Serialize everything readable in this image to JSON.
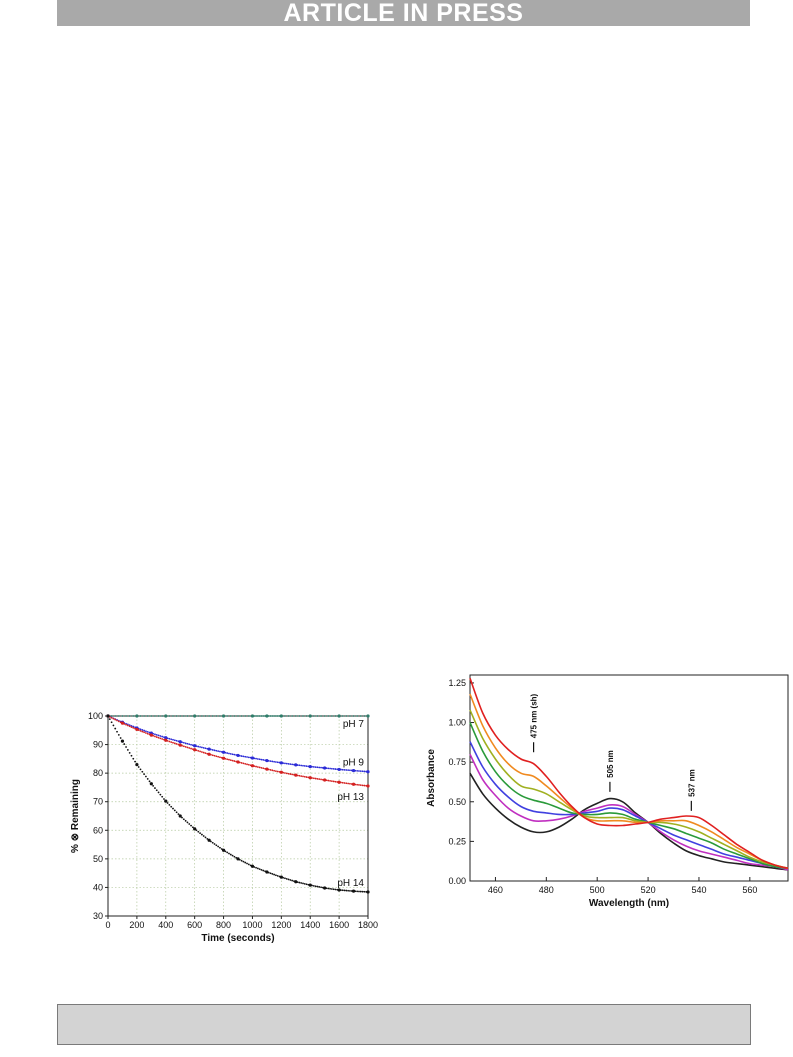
{
  "header": {
    "banner_text": "ARTICLE IN PRESS",
    "banner_color": "#a9a9a9"
  },
  "footer": {
    "box_color": "#d3d3d3"
  },
  "chart_data": [
    {
      "type": "scatter",
      "title": "",
      "xlabel": "Time (seconds)",
      "ylabel": "% ⊗ Remaining",
      "xlim": [
        0,
        1800
      ],
      "ylim": [
        30,
        100
      ],
      "xticks": [
        0,
        200,
        400,
        600,
        800,
        1000,
        1200,
        1400,
        1600,
        1800
      ],
      "yticks": [
        30,
        40,
        50,
        60,
        70,
        80,
        90,
        100
      ],
      "grid": true,
      "series": [
        {
          "name": "pH 7",
          "color": "#2e7d6a",
          "x": [
            0,
            200,
            400,
            600,
            800,
            1000,
            1100,
            1200,
            1400,
            1600,
            1800
          ],
          "y": [
            100,
            100,
            100,
            100,
            100,
            100,
            100,
            100,
            100,
            100,
            100
          ]
        },
        {
          "name": "pH 9",
          "color": "#2b2bd6",
          "x": [
            0,
            100,
            200,
            300,
            400,
            500,
            600,
            700,
            800,
            900,
            1000,
            1100,
            1200,
            1300,
            1400,
            1500,
            1600,
            1700,
            1800
          ],
          "y": [
            100,
            97.8,
            95.8,
            94.0,
            92.4,
            91.0,
            89.6,
            88.4,
            87.3,
            86.2,
            85.3,
            84.4,
            83.6,
            82.9,
            82.3,
            81.8,
            81.3,
            80.9,
            80.5
          ]
        },
        {
          "name": "pH 13",
          "color": "#d42020",
          "x": [
            0,
            100,
            200,
            300,
            400,
            500,
            600,
            700,
            800,
            900,
            1000,
            1100,
            1200,
            1300,
            1400,
            1500,
            1600,
            1700,
            1800
          ],
          "y": [
            100,
            97.5,
            95.3,
            93.3,
            91.5,
            89.8,
            88.2,
            86.6,
            85.2,
            83.9,
            82.6,
            81.4,
            80.3,
            79.3,
            78.4,
            77.6,
            76.8,
            76.1,
            75.5
          ]
        },
        {
          "name": "pH 14",
          "color": "#111111",
          "x": [
            0,
            100,
            200,
            300,
            400,
            500,
            600,
            700,
            800,
            900,
            1000,
            1100,
            1200,
            1300,
            1400,
            1500,
            1600,
            1700,
            1800
          ],
          "y": [
            100,
            91.2,
            83.0,
            76.3,
            70.2,
            65.0,
            60.5,
            56.5,
            53.0,
            50.0,
            47.4,
            45.4,
            43.6,
            42.0,
            40.8,
            39.8,
            39.1,
            38.7,
            38.4
          ]
        }
      ]
    },
    {
      "type": "line",
      "title": "",
      "xlabel": "Wavelength (nm)",
      "ylabel": "Absorbance",
      "xlim": [
        450,
        575
      ],
      "ylim": [
        0,
        1.3
      ],
      "xticks": [
        460,
        480,
        500,
        520,
        540,
        560
      ],
      "yticks": [
        0.0,
        0.25,
        0.5,
        0.75,
        1.0,
        1.25
      ],
      "ytick_labels": [
        "0.00",
        "0.25",
        "0.50",
        "0.75",
        "1.00",
        "1.25"
      ],
      "grid": false,
      "annotations": [
        {
          "text": "475 nm (sh)",
          "x": 475,
          "y": 0.8
        },
        {
          "text": "505 nm",
          "x": 505,
          "y": 0.55
        },
        {
          "text": "537 nm",
          "x": 537,
          "y": 0.43
        }
      ],
      "x": [
        450,
        455,
        460,
        465,
        470,
        475,
        480,
        485,
        490,
        495,
        500,
        505,
        510,
        515,
        520,
        525,
        530,
        535,
        540,
        545,
        550,
        555,
        560,
        565,
        570,
        575
      ],
      "series": [
        {
          "color": "#222222",
          "y": [
            0.68,
            0.55,
            0.46,
            0.39,
            0.34,
            0.31,
            0.31,
            0.34,
            0.39,
            0.45,
            0.49,
            0.52,
            0.5,
            0.43,
            0.37,
            0.3,
            0.24,
            0.19,
            0.16,
            0.14,
            0.12,
            0.11,
            0.1,
            0.09,
            0.08,
            0.07
          ]
        },
        {
          "color": "#c02fc0",
          "y": [
            0.8,
            0.64,
            0.54,
            0.46,
            0.41,
            0.38,
            0.38,
            0.39,
            0.41,
            0.44,
            0.46,
            0.48,
            0.47,
            0.42,
            0.37,
            0.31,
            0.26,
            0.22,
            0.19,
            0.17,
            0.15,
            0.13,
            0.11,
            0.1,
            0.09,
            0.07
          ]
        },
        {
          "color": "#4040e0",
          "y": [
            0.88,
            0.72,
            0.61,
            0.53,
            0.47,
            0.44,
            0.43,
            0.42,
            0.42,
            0.43,
            0.44,
            0.46,
            0.45,
            0.41,
            0.37,
            0.33,
            0.29,
            0.26,
            0.23,
            0.2,
            0.17,
            0.15,
            0.13,
            0.11,
            0.09,
            0.08
          ]
        },
        {
          "color": "#2a9a3a",
          "y": [
            1.0,
            0.82,
            0.69,
            0.6,
            0.54,
            0.51,
            0.49,
            0.46,
            0.43,
            0.42,
            0.42,
            0.43,
            0.42,
            0.39,
            0.37,
            0.35,
            0.33,
            0.3,
            0.27,
            0.24,
            0.2,
            0.17,
            0.14,
            0.11,
            0.09,
            0.08
          ]
        },
        {
          "color": "#a0b020",
          "y": [
            1.08,
            0.9,
            0.77,
            0.67,
            0.6,
            0.58,
            0.55,
            0.5,
            0.45,
            0.41,
            0.4,
            0.4,
            0.4,
            0.38,
            0.37,
            0.37,
            0.36,
            0.34,
            0.31,
            0.27,
            0.23,
            0.19,
            0.15,
            0.12,
            0.1,
            0.08
          ]
        },
        {
          "color": "#f08a20",
          "y": [
            1.18,
            0.98,
            0.84,
            0.74,
            0.68,
            0.66,
            0.6,
            0.53,
            0.46,
            0.4,
            0.38,
            0.38,
            0.38,
            0.37,
            0.37,
            0.38,
            0.38,
            0.38,
            0.35,
            0.31,
            0.26,
            0.21,
            0.17,
            0.13,
            0.1,
            0.08
          ]
        },
        {
          "color": "#e02020",
          "y": [
            1.28,
            1.06,
            0.92,
            0.83,
            0.77,
            0.74,
            0.66,
            0.56,
            0.47,
            0.4,
            0.36,
            0.35,
            0.35,
            0.36,
            0.37,
            0.39,
            0.4,
            0.41,
            0.4,
            0.35,
            0.29,
            0.23,
            0.18,
            0.13,
            0.1,
            0.08
          ]
        }
      ]
    }
  ]
}
